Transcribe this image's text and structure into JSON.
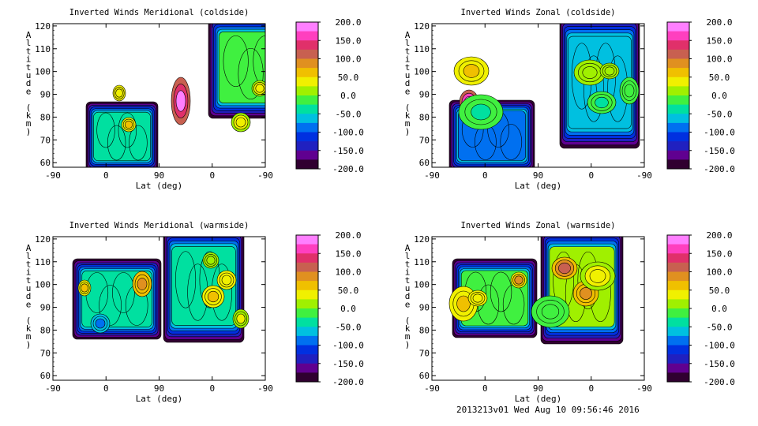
{
  "footer": "2013213v01 Wed Aug 10 09:56:46 2016",
  "color_scale": {
    "labels": [
      "200.0",
      "150.0",
      "100.0",
      "50.0",
      "0.0",
      "-50.0",
      "-100.0",
      "-150.0",
      "-200.0"
    ],
    "range": [
      -200,
      200
    ],
    "bands": [
      "#ff7fff",
      "#ff3fbf",
      "#e0306a",
      "#c86050",
      "#e09020",
      "#f0c000",
      "#f0f000",
      "#a0f000",
      "#40f040",
      "#00e0a0",
      "#00c0e0",
      "#0070f0",
      "#0030e0",
      "#2020c0",
      "#600090",
      "#300030"
    ]
  },
  "chart_data": [
    {
      "type": "heatmap",
      "title": "Inverted Winds Meridional (coldside)",
      "xlabel": "Lat (deg)",
      "ylabel": "Altitude (km)",
      "x_ticks": [
        "-90",
        "0",
        "90",
        "0",
        "-90"
      ],
      "y_ticks": [
        "60",
        "70",
        "80",
        "90",
        "100",
        "110",
        "120"
      ],
      "ylim": [
        58,
        121
      ],
      "colorbar_ticks": [
        "200.0",
        "150.0",
        "100.0",
        "50.0",
        "0.0",
        "-50.0",
        "-100.0",
        "-150.0",
        "-200.0"
      ]
    },
    {
      "type": "heatmap",
      "title": "Inverted Winds Zonal (coldside)",
      "xlabel": "Lat (deg)",
      "ylabel": "Altitude (km)",
      "x_ticks": [
        "-90",
        "0",
        "90",
        "0",
        "-90"
      ],
      "y_ticks": [
        "60",
        "70",
        "80",
        "90",
        "100",
        "110",
        "120"
      ],
      "ylim": [
        58,
        121
      ],
      "colorbar_ticks": [
        "200.0",
        "150.0",
        "100.0",
        "50.0",
        "0.0",
        "-50.0",
        "-100.0",
        "-150.0",
        "-200.0"
      ]
    },
    {
      "type": "heatmap",
      "title": "Inverted Winds Meridional (warmside)",
      "xlabel": "Lat (deg)",
      "ylabel": "Altitude (km)",
      "x_ticks": [
        "-90",
        "0",
        "90",
        "0",
        "-90"
      ],
      "y_ticks": [
        "60",
        "70",
        "80",
        "90",
        "100",
        "110",
        "120"
      ],
      "ylim": [
        58,
        121
      ],
      "colorbar_ticks": [
        "200.0",
        "150.0",
        "100.0",
        "50.0",
        "0.0",
        "-50.0",
        "-100.0",
        "-150.0",
        "-200.0"
      ]
    },
    {
      "type": "heatmap",
      "title": "Inverted Winds Zonal (warmside)",
      "xlabel": "Lat (deg)",
      "ylabel": "Altitude (km)",
      "x_ticks": [
        "-90",
        "0",
        "90",
        "0",
        "-90"
      ],
      "y_ticks": [
        "60",
        "70",
        "80",
        "90",
        "100",
        "110",
        "120"
      ],
      "ylim": [
        58,
        121
      ],
      "colorbar_ticks": [
        "200.0",
        "150.0",
        "100.0",
        "50.0",
        "0.0",
        "-50.0",
        "-100.0",
        "-150.0",
        "-200.0"
      ]
    }
  ]
}
